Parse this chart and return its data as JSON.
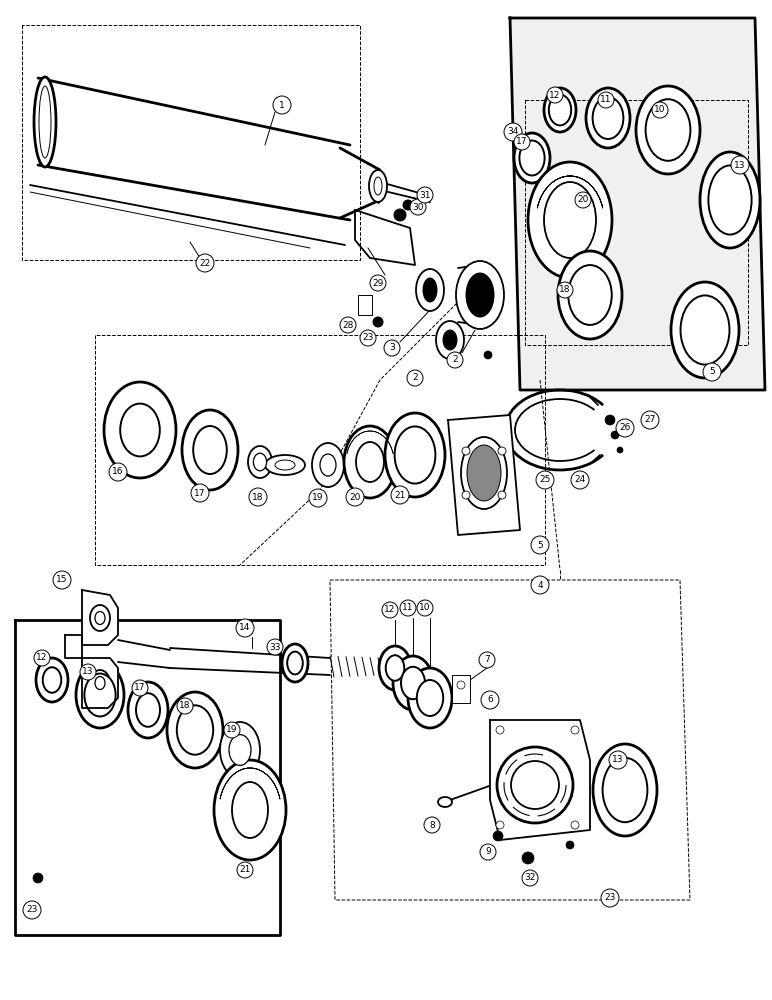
{
  "bg_color": "#ffffff",
  "line_color": "#000000",
  "fig_width": 7.72,
  "fig_height": 10.0,
  "dpi": 100,
  "lw_thin": 0.7,
  "lw_med": 1.3,
  "lw_thick": 2.0,
  "label_fontsize": 6.5,
  "label_r": 9
}
